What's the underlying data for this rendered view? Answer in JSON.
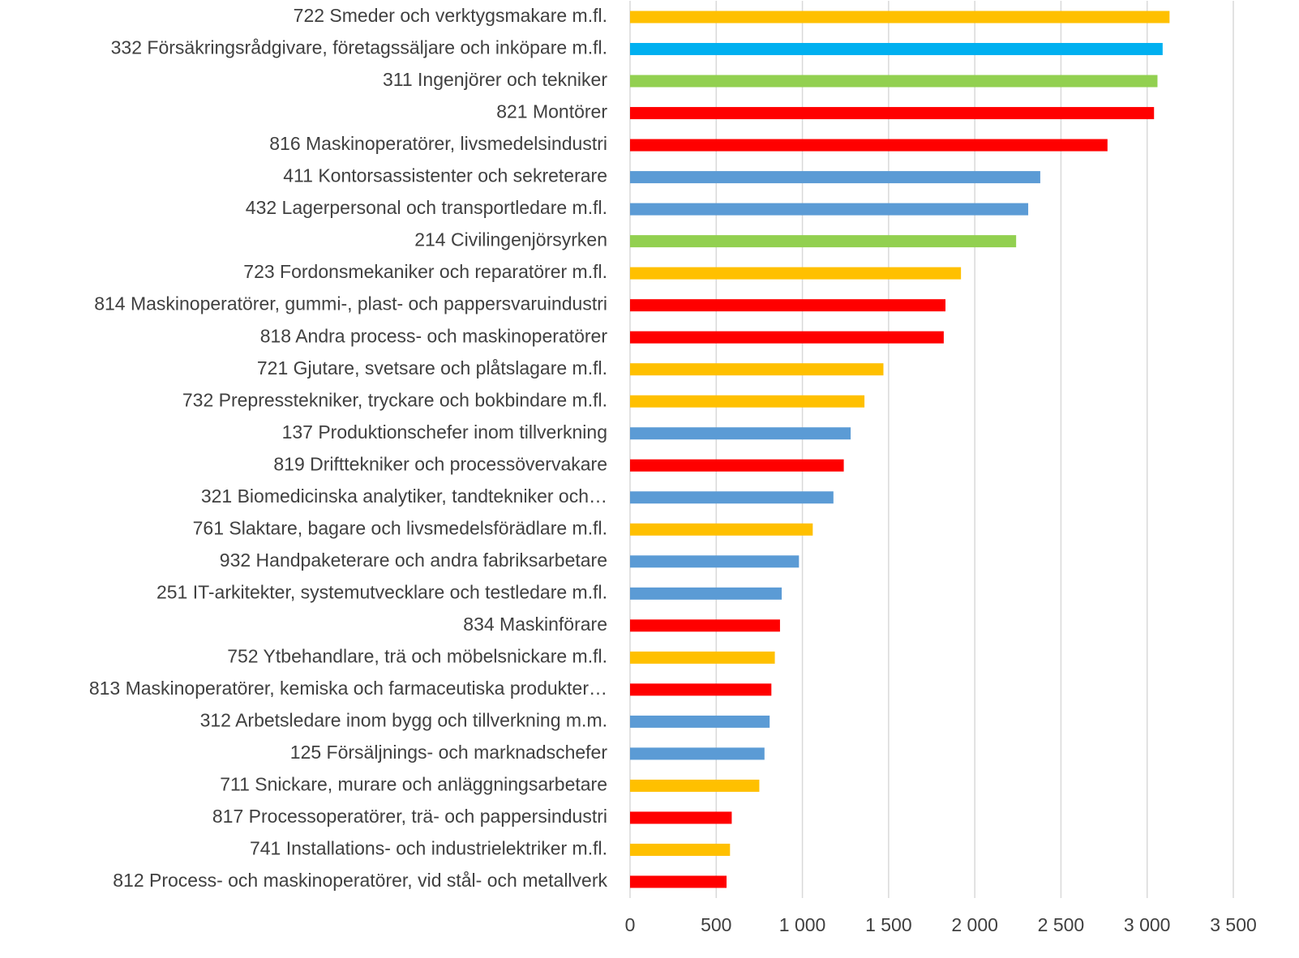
{
  "chart_data": {
    "type": "hbar",
    "categories": [
      "722 Smeder och verktygsmakare m.fl.",
      "332 Försäkringsrådgivare, företagssäljare och inköpare m.fl.",
      "311 Ingenjörer och tekniker",
      "821 Montörer",
      "816 Maskinoperatörer, livsmedelsindustri",
      "411 Kontorsassistenter och sekreterare",
      "432 Lagerpersonal och transportledare m.fl.",
      "214 Civilingenjörsyrken",
      "723 Fordonsmekaniker och reparatörer m.fl.",
      "814 Maskinoperatörer, gummi-, plast- och pappersvaruindustri",
      "818 Andra process- och maskinoperatörer",
      "721 Gjutare, svetsare och plåtslagare m.fl.",
      "732 Prepresstekniker, tryckare och bokbindare m.fl.",
      "137 Produktionschefer inom tillverkning",
      "819 Drifttekniker och processövervakare",
      "321 Biomedicinska analytiker, tandtekniker och…",
      "761 Slaktare, bagare och livsmedelsförädlare m.fl.",
      "932 Handpaketerare och andra fabriksarbetare",
      "251 IT-arkitekter, systemutvecklare och testledare m.fl.",
      "834 Maskinförare",
      "752 Ytbehandlare, trä och möbelsnickare m.fl.",
      "813 Maskinoperatörer, kemiska och farmaceutiska produkter…",
      "312 Arbetsledare inom bygg och tillverkning m.m.",
      "125 Försäljnings- och marknadschefer",
      "711 Snickare, murare och anläggningsarbetare",
      "817 Processoperatörer, trä- och pappersindustri",
      "741 Installations- och industrielektriker m.fl.",
      "812 Process- och maskinoperatörer, vid stål- och metallverk"
    ],
    "values": [
      3130,
      3090,
      3060,
      3040,
      2770,
      2380,
      2310,
      2240,
      1920,
      1830,
      1820,
      1470,
      1360,
      1280,
      1240,
      1180,
      1060,
      980,
      880,
      870,
      840,
      820,
      810,
      780,
      750,
      590,
      580,
      560
    ],
    "colors": [
      "#ffc000",
      "#00b0f0",
      "#92d050",
      "#ff0000",
      "#ff0000",
      "#5b9bd5",
      "#5b9bd5",
      "#92d050",
      "#ffc000",
      "#ff0000",
      "#ff0000",
      "#ffc000",
      "#ffc000",
      "#5b9bd5",
      "#ff0000",
      "#5b9bd5",
      "#ffc000",
      "#5b9bd5",
      "#5b9bd5",
      "#ff0000",
      "#ffc000",
      "#ff0000",
      "#5b9bd5",
      "#5b9bd5",
      "#ffc000",
      "#ff0000",
      "#ffc000",
      "#ff0000"
    ],
    "xlim": [
      0,
      3500
    ],
    "xticks": [
      0,
      500,
      {
        "value": 1000,
        "label": "1 000"
      },
      {
        "value": 1500,
        "label": "1 500"
      },
      {
        "value": 2000,
        "label": "2 000"
      },
      {
        "value": 2500,
        "label": "2 500"
      },
      {
        "value": 3000,
        "label": "3 000"
      },
      {
        "value": 3500,
        "label": "3 500"
      }
    ],
    "grid": true
  }
}
